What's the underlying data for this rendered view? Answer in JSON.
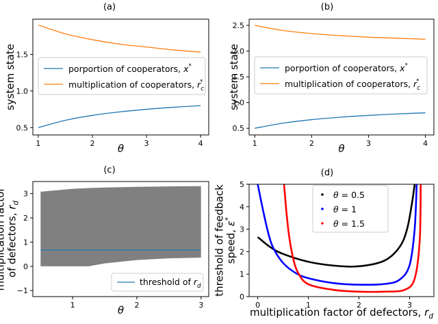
{
  "chart_data": [
    {
      "panel": "(a)",
      "type": "line",
      "xlabel": "θ",
      "ylabel": "system state",
      "xlim": [
        0.9,
        4.15
      ],
      "ylim": [
        0.4,
        1.98
      ],
      "xticks": [
        1,
        2,
        3,
        4
      ],
      "yticks": [
        0.5,
        1.0,
        1.5
      ],
      "ytick_labels": [
        "0.5",
        "1.0",
        "1.5"
      ],
      "legend_position": "center-left",
      "series": [
        {
          "name": "porportion of cooperators, x*",
          "color": "#1f77b4",
          "x": [
            1,
            1.5,
            2,
            2.5,
            3,
            3.5,
            4
          ],
          "y": [
            0.5,
            0.6,
            0.667,
            0.714,
            0.75,
            0.778,
            0.8
          ]
        },
        {
          "name": "multiplication of cooperators, r_c*",
          "color": "#ff7f0e",
          "x": [
            1,
            1.5,
            2,
            2.5,
            3,
            3.5,
            4
          ],
          "y": [
            1.9,
            1.78,
            1.7,
            1.64,
            1.6,
            1.56,
            1.53
          ]
        }
      ]
    },
    {
      "panel": "(b)",
      "type": "line",
      "xlabel": "θ",
      "ylabel": "system state",
      "xlim": [
        0.9,
        4.15
      ],
      "ylim": [
        0.37,
        2.62
      ],
      "xticks": [
        1,
        2,
        3,
        4
      ],
      "yticks": [
        0.5,
        1.0,
        1.5,
        2.0,
        2.5
      ],
      "ytick_labels": [
        "0.5",
        "1.0",
        "1.5",
        "2.0",
        "2.5"
      ],
      "legend_position": "center",
      "series": [
        {
          "name": "porportion of cooperators, x*",
          "color": "#1f77b4",
          "x": [
            1,
            1.5,
            2,
            2.5,
            3,
            3.5,
            4
          ],
          "y": [
            0.5,
            0.6,
            0.667,
            0.714,
            0.75,
            0.778,
            0.8
          ]
        },
        {
          "name": "multiplication of cooperators, r_c*",
          "color": "#ff7f0e",
          "x": [
            1,
            1.5,
            2,
            2.5,
            3,
            3.5,
            4
          ],
          "y": [
            2.5,
            2.4,
            2.34,
            2.3,
            2.27,
            2.25,
            2.23
          ]
        }
      ]
    },
    {
      "panel": "(c)",
      "type": "area",
      "xlabel": "θ",
      "ylabel": "multiplication factor of defectors, r_d",
      "ylabel_lines": [
        "multiplication factor",
        "of defectors, r_d"
      ],
      "xlim": [
        0.38,
        3.12
      ],
      "ylim": [
        -1.25,
        3.5
      ],
      "xticks": [
        1,
        2,
        3
      ],
      "yticks": [
        -1,
        0,
        1,
        2,
        3
      ],
      "ytick_labels": [
        "−1",
        "0",
        "1",
        "2",
        "3"
      ],
      "legend_position": "lower-right",
      "band": {
        "color": "#808080",
        "x": [
          0.5,
          1.0,
          1.25,
          1.5,
          2.0,
          2.5,
          3.0
        ],
        "upper": [
          3.08,
          3.2,
          3.23,
          3.25,
          3.28,
          3.3,
          3.31
        ],
        "lower": [
          0.0,
          0.0,
          0.0,
          0.12,
          0.26,
          0.33,
          0.36
        ]
      },
      "series": [
        {
          "name": "threshold of r_d",
          "color": "#1f77b4",
          "x": [
            0.5,
            3.0
          ],
          "y": [
            0.67,
            0.67
          ]
        }
      ]
    },
    {
      "panel": "(d)",
      "type": "scatter",
      "xlabel": "multiplication factor of defectors, r_d",
      "ylabel": "threshold of feedback speed, ε*",
      "ylabel_lines": [
        "threshold of feedback",
        "speed, ε*"
      ],
      "xlim": [
        -0.17,
        3.48
      ],
      "ylim": [
        0,
        5
      ],
      "xticks": [
        0,
        1,
        2,
        3
      ],
      "yticks": [
        0,
        1,
        2,
        3,
        4,
        5
      ],
      "ytick_labels": [
        "0",
        "1",
        "2",
        "3",
        "4",
        "5"
      ],
      "legend_position": "upper-center",
      "series": [
        {
          "name": "θ = 0.5",
          "color": "#000000",
          "x": [
            0.0,
            0.25,
            0.5,
            1.0,
            1.5,
            2.0,
            2.5,
            2.8,
            2.95,
            3.05,
            3.1
          ],
          "y": [
            2.65,
            2.2,
            1.9,
            1.55,
            1.38,
            1.35,
            1.6,
            2.2,
            3.0,
            4.2,
            5.0
          ]
        },
        {
          "name": "θ = 1",
          "color": "#0000ff",
          "x": [
            0.0,
            0.1,
            0.2,
            0.3,
            0.5,
            0.75,
            1.0,
            1.5,
            2.0,
            2.5,
            2.8,
            3.0,
            3.1,
            3.14
          ],
          "y": [
            5.0,
            3.9,
            2.9,
            2.2,
            1.5,
            1.05,
            0.82,
            0.6,
            0.53,
            0.56,
            0.75,
            1.4,
            3.0,
            5.0
          ]
        },
        {
          "name": "θ = 1.5",
          "color": "#ff0000",
          "x": [
            0.52,
            0.57,
            0.62,
            0.7,
            0.8,
            1.0,
            1.5,
            2.0,
            2.5,
            2.9,
            3.1,
            3.2,
            3.22
          ],
          "y": [
            5.0,
            3.7,
            2.7,
            1.7,
            1.05,
            0.55,
            0.3,
            0.22,
            0.22,
            0.3,
            0.8,
            2.5,
            5.0
          ]
        }
      ]
    }
  ]
}
